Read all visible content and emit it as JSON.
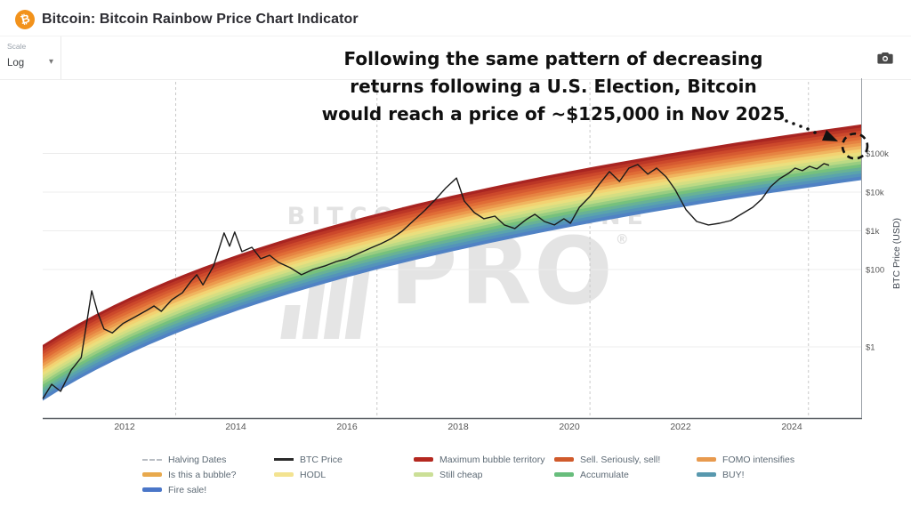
{
  "header": {
    "icon_glyph": "₿",
    "title": "Bitcoin: Bitcoin Rainbow Price Chart Indicator"
  },
  "controls": {
    "scale_label": "Scale",
    "scale_value": "Log",
    "caret_glyph": "▾",
    "camera_icon": "camera-icon"
  },
  "annotation": {
    "line1": "Following the same pattern of decreasing",
    "line2": "returns following a U.S. Election, Bitcoin",
    "line3": "would reach a price of ~$125,000 in Nov 2025"
  },
  "watermark": {
    "brand": "BITCOIN MAGAZINE",
    "product": "PRO",
    "registered": "®"
  },
  "chart_data": {
    "type": "line",
    "title": "Bitcoin Rainbow Price Chart Indicator",
    "ylabel": "BTC Price (USD)",
    "y_scale": "log",
    "x_ticks": [
      2012,
      2014,
      2016,
      2018,
      2020,
      2022,
      2024
    ],
    "y_ticks": [
      {
        "label": "$100k",
        "value": 100000
      },
      {
        "label": "$10k",
        "value": 10000
      },
      {
        "label": "$1k",
        "value": 1000
      },
      {
        "label": "$100",
        "value": 100
      },
      {
        "label": "$1",
        "value": 1
      }
    ],
    "halving_dates_t": [
      2012.92,
      2016.54,
      2020.37,
      2024.3
    ],
    "bands_top_to_bottom": [
      {
        "name": "Maximum bubble territory",
        "color": "#9f1b1e"
      },
      {
        "name": "Sell. Seriously, sell!",
        "color": "#c9432a"
      },
      {
        "name": "FOMO intensifies",
        "color": "#e06c36"
      },
      {
        "name": "Is this a bubble?",
        "color": "#eda050"
      },
      {
        "name": "HODL",
        "color": "#f5e07c"
      },
      {
        "name": "Still cheap",
        "color": "#c5dd85"
      },
      {
        "name": "Accumulate",
        "color": "#76c17d"
      },
      {
        "name": "BUY!",
        "color": "#57a0b2"
      },
      {
        "name": "Fire sale!",
        "color": "#4e79c9"
      }
    ],
    "projection": {
      "price_usd": 125000,
      "date_label": "Nov 2025"
    },
    "btc_series_t_usd": [
      [
        2010.53,
        0.046
      ],
      [
        2010.69,
        0.108
      ],
      [
        2010.85,
        0.071
      ],
      [
        2011.04,
        0.25
      ],
      [
        2011.22,
        0.53
      ],
      [
        2011.41,
        28
      ],
      [
        2011.52,
        7.5
      ],
      [
        2011.63,
        2.9
      ],
      [
        2011.78,
        2.3
      ],
      [
        2011.97,
        4.0
      ],
      [
        2012.19,
        6.0
      ],
      [
        2012.4,
        8.8
      ],
      [
        2012.53,
        11.4
      ],
      [
        2012.66,
        8.3
      ],
      [
        2012.85,
        16.5
      ],
      [
        2013.04,
        25
      ],
      [
        2013.18,
        47
      ],
      [
        2013.3,
        73
      ],
      [
        2013.41,
        40
      ],
      [
        2013.6,
        123
      ],
      [
        2013.79,
        880
      ],
      [
        2013.89,
        400
      ],
      [
        2013.98,
        930
      ],
      [
        2014.11,
        290
      ],
      [
        2014.29,
        376
      ],
      [
        2014.45,
        190
      ],
      [
        2014.61,
        233
      ],
      [
        2014.77,
        153
      ],
      [
        2014.98,
        111
      ],
      [
        2015.18,
        73
      ],
      [
        2015.39,
        100
      ],
      [
        2015.6,
        123
      ],
      [
        2015.81,
        161
      ],
      [
        2016.0,
        190
      ],
      [
        2016.21,
        260
      ],
      [
        2016.42,
        357
      ],
      [
        2016.61,
        464
      ],
      [
        2016.8,
        635
      ],
      [
        2016.99,
        973
      ],
      [
        2017.18,
        1740
      ],
      [
        2017.39,
        3280
      ],
      [
        2017.58,
        6180
      ],
      [
        2017.78,
        12900
      ],
      [
        2017.97,
        23200
      ],
      [
        2018.11,
        5860
      ],
      [
        2018.29,
        2960
      ],
      [
        2018.46,
        2050
      ],
      [
        2018.66,
        2400
      ],
      [
        2018.83,
        1420
      ],
      [
        2019.02,
        1150
      ],
      [
        2019.22,
        1950
      ],
      [
        2019.38,
        2670
      ],
      [
        2019.55,
        1740
      ],
      [
        2019.73,
        1420
      ],
      [
        2019.9,
        2050
      ],
      [
        2020.02,
        1570
      ],
      [
        2020.18,
        4070
      ],
      [
        2020.37,
        7720
      ],
      [
        2020.54,
        16200
      ],
      [
        2020.72,
        33900
      ],
      [
        2020.9,
        18900
      ],
      [
        2021.07,
        41800
      ],
      [
        2021.23,
        51600
      ],
      [
        2021.41,
        29100
      ],
      [
        2021.57,
        41800
      ],
      [
        2021.74,
        24700
      ],
      [
        2021.9,
        11700
      ],
      [
        2022.1,
        3480
      ],
      [
        2022.29,
        1740
      ],
      [
        2022.5,
        1420
      ],
      [
        2022.7,
        1570
      ],
      [
        2022.9,
        1840
      ],
      [
        2023.09,
        2670
      ],
      [
        2023.3,
        4070
      ],
      [
        2023.46,
        6600
      ],
      [
        2023.62,
        13800
      ],
      [
        2023.78,
        22100
      ],
      [
        2023.94,
        30500
      ],
      [
        2024.06,
        41800
      ],
      [
        2024.19,
        35800
      ],
      [
        2024.32,
        46300
      ],
      [
        2024.45,
        39800
      ],
      [
        2024.58,
        54600
      ],
      [
        2024.67,
        49500
      ]
    ]
  },
  "legend": {
    "columns": [
      [
        {
          "label": "Halving Dates",
          "swatch": "dash",
          "color": "#b9bec4"
        },
        {
          "label": "Is this a bubble?",
          "swatch": "band",
          "color": "#e8a94d"
        },
        {
          "label": "Fire sale!",
          "swatch": "band",
          "color": "#4a76c8"
        }
      ],
      [
        {
          "label": "BTC Price",
          "swatch": "line",
          "color": "#2a2a2a"
        },
        {
          "label": "HODL",
          "swatch": "band",
          "color": "#f3e391"
        }
      ],
      [
        {
          "label": "Maximum bubble territory",
          "swatch": "band",
          "color": "#b4281f"
        },
        {
          "label": "Still cheap",
          "swatch": "band",
          "color": "#cbdf97"
        }
      ],
      [
        {
          "label": "Sell. Seriously, sell!",
          "swatch": "band",
          "color": "#d05a2b"
        },
        {
          "label": "Accumulate",
          "swatch": "band",
          "color": "#68bd7c"
        }
      ],
      [
        {
          "label": "FOMO intensifies",
          "swatch": "band",
          "color": "#e89a4e"
        },
        {
          "label": "BUY!",
          "swatch": "band",
          "color": "#5898ae"
        }
      ]
    ]
  }
}
